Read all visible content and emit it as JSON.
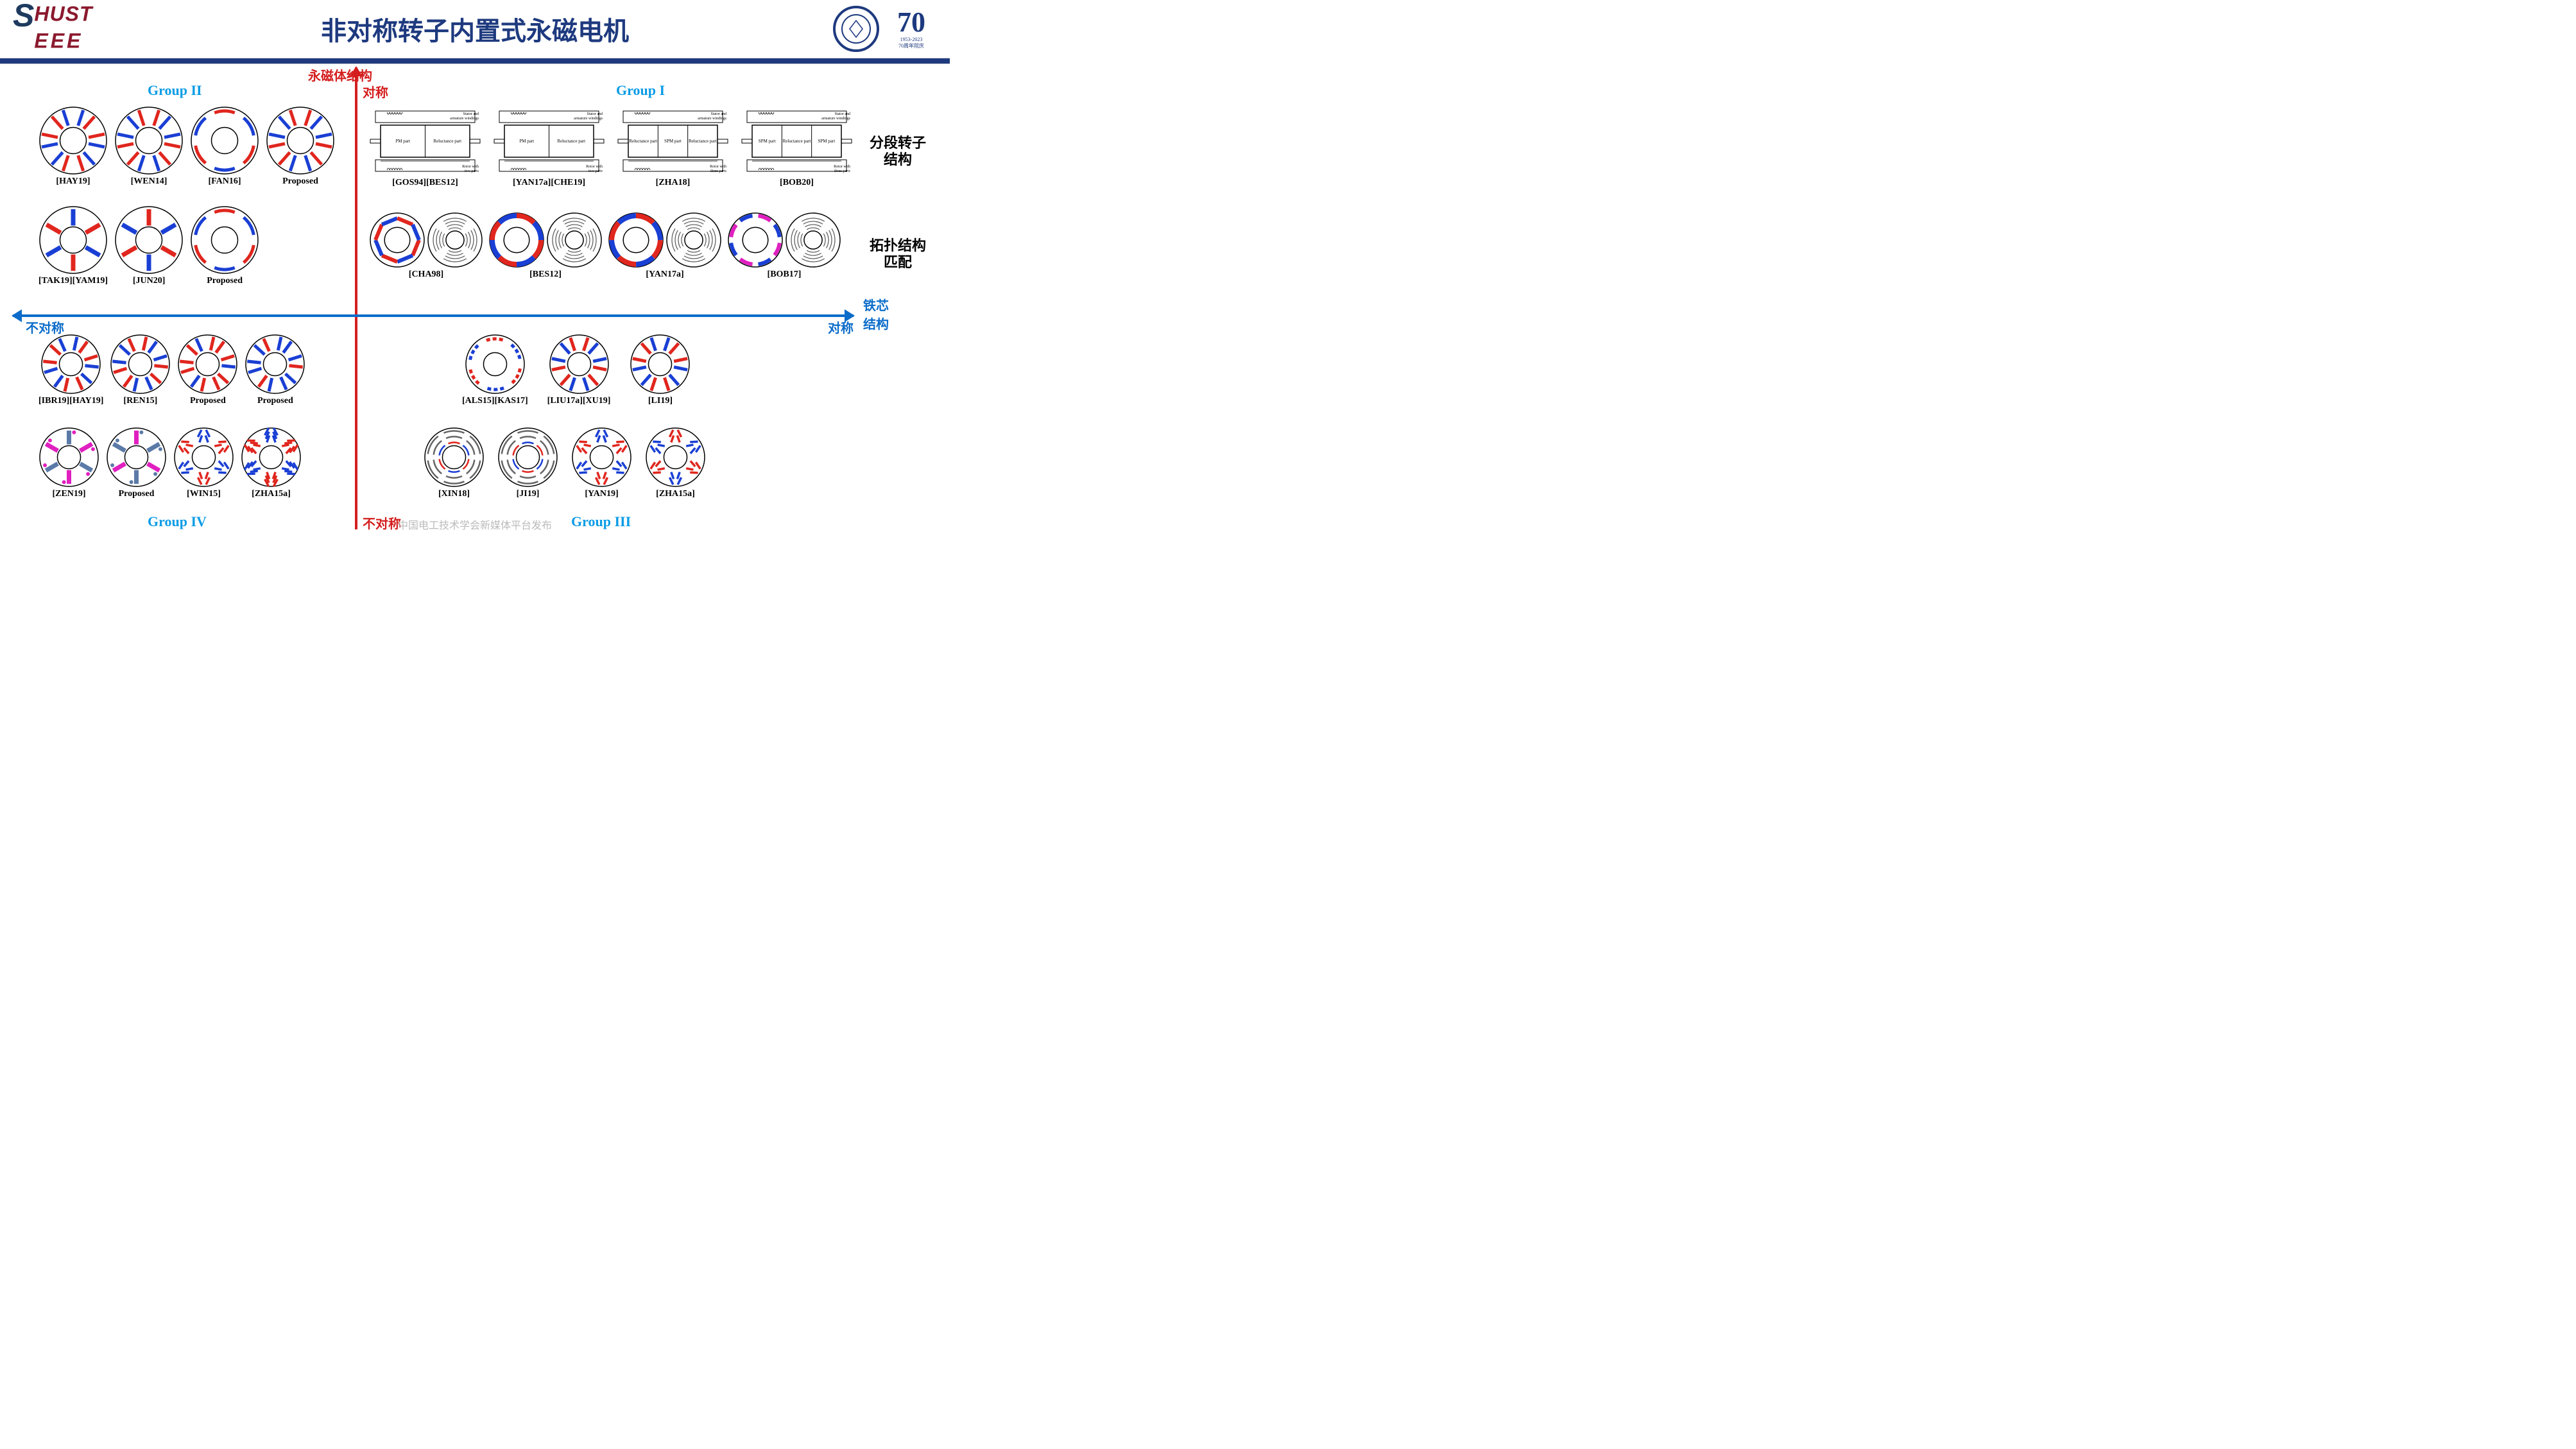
{
  "header": {
    "logo_top": "HUST",
    "logo_bottom": "EEE",
    "title": "非对称转子内置式永磁电机",
    "anniversary_num": "70",
    "anniversary_sub1": "1953-2023",
    "anniversary_sub2": "70周年院庆"
  },
  "axes": {
    "v_title": "永磁体结构",
    "v_top": "对称",
    "v_bottom": "不对称",
    "h_title": "铁芯\n结构",
    "h_left": "不对称",
    "h_right": "对称"
  },
  "side_labels": {
    "seg_rotor": "分段转子\n结构",
    "topology": "拓扑结构\n匹配"
  },
  "groups": {
    "g1": "Group I",
    "g2": "Group II",
    "g3": "Group III",
    "g4": "Group IV"
  },
  "colors": {
    "red": "#e0261e",
    "blue": "#1a3fd4",
    "magenta": "#e020c0",
    "steel": "#5b7aa8",
    "axis_red": "#d41e1e",
    "axis_blue": "#0b6cc9",
    "group_blue": "#0b9ce6",
    "title_navy": "#1e3a7f"
  },
  "group2": {
    "row1": [
      {
        "caption": "[HAY19]",
        "type": "spoke_v",
        "c1": "#1a3fd4",
        "c2": "#e0261e"
      },
      {
        "caption": "[WEN14]",
        "type": "spoke_v",
        "c1": "#e0261e",
        "c2": "#1a3fd4"
      },
      {
        "caption": "[FAN16]",
        "type": "arc_pair",
        "c1": "#e0261e",
        "c2": "#1a3fd4"
      },
      {
        "caption": "Proposed",
        "type": "v_shaped",
        "c1": "#e0261e",
        "c2": "#1a3fd4"
      }
    ],
    "row2": [
      {
        "caption": "[TAK19][YAM19]",
        "type": "radial_spoke",
        "c1": "#1a3fd4",
        "c2": "#e0261e"
      },
      {
        "caption": "[JUN20]",
        "type": "radial_spoke",
        "c1": "#e0261e",
        "c2": "#1a3fd4"
      },
      {
        "caption": "Proposed",
        "type": "spoke_arc",
        "c1": "#e0261e",
        "c2": "#1a3fd4"
      }
    ]
  },
  "group1": {
    "seg_row": [
      {
        "caption": "[GOS94][BES12]",
        "parts": [
          "PM part",
          "Reluctance part"
        ]
      },
      {
        "caption": "[YAN17a][CHE19]",
        "parts": [
          "PM part",
          "Reluctance part"
        ]
      },
      {
        "caption": "[ZHA18]",
        "parts": [
          "Reluctance part",
          "SPM part",
          "Reluctance part"
        ]
      },
      {
        "caption": "[BOB20]",
        "parts": [
          "SPM part",
          "Reluctance part",
          "SPM part"
        ]
      }
    ],
    "topo_row": [
      {
        "caption": "[CHA98]",
        "pm": "octagon",
        "c1": "#e0261e",
        "c2": "#1a3fd4"
      },
      {
        "caption": "[BES12]",
        "pm": "ring",
        "c1": "#e0261e",
        "c2": "#1a3fd4"
      },
      {
        "caption": "[YAN17a]",
        "pm": "petal",
        "c1": "#e0261e",
        "c2": "#1a3fd4"
      },
      {
        "caption": "[BOB17]",
        "pm": "dash_ring",
        "c1": "#e020c0",
        "c2": "#1a3fd4"
      }
    ]
  },
  "group4": {
    "row1": [
      {
        "caption": "[IBR19][HAY19]",
        "type": "v_asym",
        "c1": "#1a3fd4",
        "c2": "#e0261e"
      },
      {
        "caption": "[REN15]",
        "type": "v_asym",
        "c1": "#e0261e",
        "c2": "#1a3fd4"
      },
      {
        "caption": "Proposed",
        "type": "v_asym2",
        "c1": "#1a3fd4",
        "c2": "#e0261e"
      },
      {
        "caption": "Proposed",
        "type": "v_asym2",
        "c1": "#e0261e",
        "c2": "#1a3fd4"
      }
    ],
    "row2": [
      {
        "caption": "[ZEN19]",
        "type": "spoke_mag",
        "c1": "#5b7aa8",
        "c2": "#e020c0"
      },
      {
        "caption": "Proposed",
        "type": "spoke_mag",
        "c1": "#e020c0",
        "c2": "#5b7aa8"
      },
      {
        "caption": "[WIN15]",
        "type": "multi_v",
        "c1": "#1a3fd4",
        "c2": "#e0261e"
      },
      {
        "caption": "[ZHA15a]",
        "type": "multi_v_dense",
        "c1": "#1a3fd4",
        "c2": "#e0261e"
      }
    ]
  },
  "group3": {
    "row1": [
      {
        "caption": "[ALS15][KAS17]",
        "type": "dash_arc",
        "c1": "#e0261e",
        "c2": "#1a3fd4"
      },
      {
        "caption": "[LIU17a][XU19]",
        "type": "v_sym",
        "c1": "#e0261e",
        "c2": "#1a3fd4"
      },
      {
        "caption": "[LI19]",
        "type": "v_sym",
        "c1": "#1a3fd4",
        "c2": "#e0261e"
      }
    ],
    "row2": [
      {
        "caption": "[XIN18]",
        "type": "reluctance",
        "c1": "#e0261e",
        "c2": "#1a3fd4"
      },
      {
        "caption": "[JI19]",
        "type": "reluctance",
        "c1": "#1a3fd4",
        "c2": "#e0261e"
      },
      {
        "caption": "[YAN19]",
        "type": "multi_v",
        "c1": "#1a3fd4",
        "c2": "#e0261e"
      },
      {
        "caption": "[ZHA15a]",
        "type": "multi_v",
        "c1": "#e0261e",
        "c2": "#1a3fd4"
      }
    ]
  },
  "watermark": "中国电工技术学会新媒体平台发布"
}
